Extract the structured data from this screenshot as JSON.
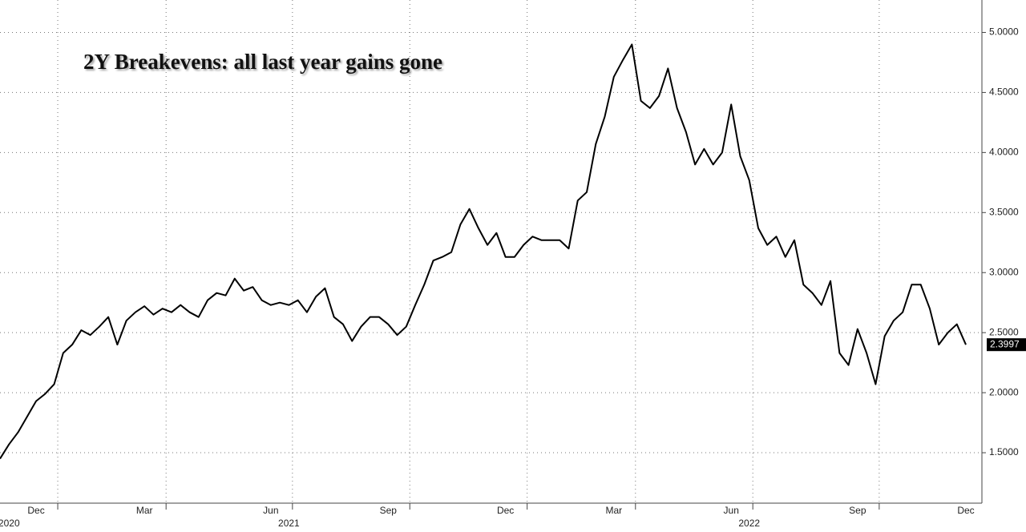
{
  "chart_data": {
    "type": "line",
    "title": "2Y Breakevens: all last year gains gone",
    "categories": [
      null,
      null,
      null,
      null,
      "Dec",
      null,
      null,
      null,
      null,
      null,
      null,
      null,
      null,
      null,
      null,
      null,
      "Mar",
      null,
      null,
      null,
      null,
      null,
      null,
      null,
      null,
      null,
      null,
      null,
      null,
      null,
      "Jun",
      null,
      null,
      null,
      null,
      null,
      null,
      null,
      null,
      null,
      null,
      null,
      null,
      "Sep",
      null,
      null,
      null,
      null,
      null,
      null,
      null,
      null,
      null,
      null,
      null,
      null,
      "Dec",
      null,
      null,
      null,
      null,
      null,
      null,
      null,
      null,
      null,
      null,
      null,
      "Mar",
      null,
      null,
      null,
      null,
      null,
      null,
      null,
      null,
      null,
      null,
      null,
      null,
      "Jun",
      null,
      null,
      null,
      null,
      null,
      null,
      null,
      null,
      null,
      null,
      null,
      null,
      null,
      "Sep",
      null,
      null,
      null,
      null,
      null,
      null,
      null,
      null,
      null,
      null,
      null,
      "Dec"
    ],
    "year_labels": [
      null,
      "2020",
      null,
      null,
      null,
      null,
      null,
      null,
      null,
      null,
      null,
      null,
      null,
      null,
      null,
      null,
      null,
      null,
      null,
      null,
      null,
      null,
      null,
      null,
      null,
      null,
      null,
      null,
      null,
      null,
      null,
      null,
      "2021",
      null,
      null,
      null,
      null,
      null,
      null,
      null,
      null,
      null,
      null,
      null,
      null,
      null,
      null,
      null,
      null,
      null,
      null,
      null,
      null,
      null,
      null,
      null,
      null,
      null,
      null,
      null,
      null,
      null,
      null,
      null,
      null,
      null,
      null,
      null,
      null,
      null,
      null,
      null,
      null,
      null,
      null,
      null,
      null,
      null,
      null,
      null,
      null,
      null,
      null,
      "2022",
      null,
      null,
      null,
      null,
      null,
      null,
      null,
      null,
      null,
      null,
      null,
      null,
      null,
      null,
      null,
      null,
      null,
      null,
      null,
      null,
      null,
      null,
      null,
      null
    ],
    "values": [
      1.45,
      1.57,
      1.67,
      1.8,
      1.93,
      1.99,
      2.07,
      2.33,
      2.4,
      2.52,
      2.48,
      2.55,
      2.63,
      2.4,
      2.6,
      2.67,
      2.72,
      2.65,
      2.7,
      2.67,
      2.73,
      2.67,
      2.63,
      2.77,
      2.83,
      2.81,
      2.95,
      2.85,
      2.88,
      2.77,
      2.73,
      2.75,
      2.73,
      2.77,
      2.67,
      2.8,
      2.87,
      2.63,
      2.57,
      2.43,
      2.55,
      2.63,
      2.63,
      2.57,
      2.48,
      2.55,
      2.73,
      2.9,
      3.1,
      3.13,
      3.17,
      3.4,
      3.53,
      3.37,
      3.23,
      3.33,
      3.13,
      3.13,
      3.23,
      3.3,
      3.27,
      3.27,
      3.27,
      3.2,
      3.6,
      3.67,
      4.07,
      4.3,
      4.63,
      4.77,
      4.9,
      4.43,
      4.37,
      4.47,
      4.7,
      4.37,
      4.17,
      3.9,
      4.03,
      3.9,
      4.0,
      4.4,
      3.97,
      3.77,
      3.37,
      3.23,
      3.3,
      3.13,
      3.27,
      2.9,
      2.83,
      2.73,
      2.93,
      2.33,
      2.23,
      2.53,
      2.33,
      2.07,
      2.47,
      2.6,
      2.67,
      2.9,
      2.9,
      2.7,
      2.4,
      2.5,
      2.57,
      2.3997
    ],
    "last_value_label": "2.3997",
    "color": "#000000",
    "ylim": [
      1.08,
      5.27
    ],
    "yticks": [
      {
        "value": 1.5,
        "label": "1.5000"
      },
      {
        "value": 2,
        "label": "2.0000"
      },
      {
        "value": 2.5,
        "label": "2.5000"
      },
      {
        "value": 3,
        "label": "3.0000"
      },
      {
        "value": 3.5,
        "label": "3.5000"
      },
      {
        "value": 4,
        "label": "4.0000"
      },
      {
        "value": 4.5,
        "label": "4.5000"
      },
      {
        "value": 5,
        "label": "5.0000"
      }
    ],
    "grid": true
  }
}
